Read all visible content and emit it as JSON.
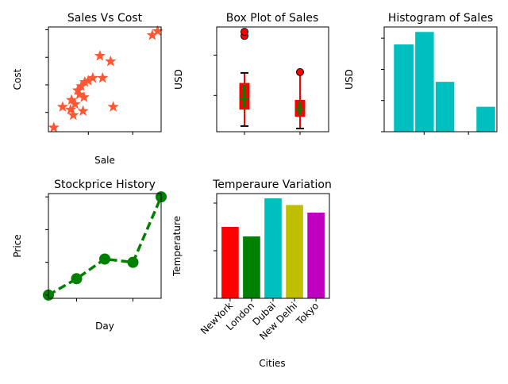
{
  "chart_data": [
    {
      "type": "scatter",
      "title": "Sales Vs Cost",
      "xlabel": "Sale",
      "ylabel": "Cost",
      "xlim": [
        5,
        132
      ],
      "ylim": [
        6,
        82
      ],
      "xticks": [
        50,
        100
      ],
      "yticks": [
        20,
        40,
        60,
        80
      ],
      "marker": "star",
      "color": "#ff5733",
      "points": [
        {
          "x": 11,
          "y": 9
        },
        {
          "x": 21,
          "y": 24
        },
        {
          "x": 30,
          "y": 22
        },
        {
          "x": 31,
          "y": 29
        },
        {
          "x": 33,
          "y": 18
        },
        {
          "x": 35,
          "y": 26
        },
        {
          "x": 38,
          "y": 36
        },
        {
          "x": 40,
          "y": 33
        },
        {
          "x": 42,
          "y": 39
        },
        {
          "x": 44,
          "y": 21
        },
        {
          "x": 45,
          "y": 31
        },
        {
          "x": 46,
          "y": 42
        },
        {
          "x": 50,
          "y": 43
        },
        {
          "x": 55,
          "y": 45
        },
        {
          "x": 63,
          "y": 61
        },
        {
          "x": 66,
          "y": 45
        },
        {
          "x": 75,
          "y": 57
        },
        {
          "x": 78,
          "y": 24
        },
        {
          "x": 122,
          "y": 76
        },
        {
          "x": 128,
          "y": 79
        }
      ]
    },
    {
      "type": "box",
      "title": "Box Plot of Sales",
      "xlabel": "",
      "ylabel": "USD",
      "xticks": [
        "1",
        "2"
      ],
      "ylim": [
        5,
        135
      ],
      "yticks": [
        50,
        100
      ],
      "box_color": "#ff0000",
      "median_color": "#008000",
      "whisker_color": "#ff0000",
      "cap_color": "#000000",
      "boxes": [
        {
          "whislo": 12,
          "q1": 33,
          "median": 46,
          "q3": 65,
          "whishi": 78,
          "fliers": [
            124,
            129
          ]
        },
        {
          "whislo": 9,
          "q1": 24,
          "median": 33,
          "q3": 44,
          "whishi": 79,
          "fliers": [
            79
          ]
        }
      ]
    },
    {
      "type": "bar",
      "title": "Histogram of Sales",
      "xlabel": "",
      "ylabel": "USD",
      "xlim": [
        5,
        132
      ],
      "ylim": [
        0,
        8.4
      ],
      "xticks": [
        50,
        100
      ],
      "yticks": [
        "0.0",
        "2.5",
        "5.0",
        "7.5"
      ],
      "color": "#00bfbf",
      "bins": [
        {
          "x0": 16,
          "x1": 38,
          "value": 7
        },
        {
          "x0": 40,
          "x1": 61,
          "value": 8
        },
        {
          "x0": 63,
          "x1": 84,
          "value": 4
        },
        {
          "x0": 86,
          "x1": 107,
          "value": 0
        },
        {
          "x0": 109,
          "x1": 130,
          "value": 2
        }
      ]
    },
    {
      "type": "line",
      "title": "Stockprice History",
      "xlabel": "Day",
      "ylabel": "Price",
      "xlim": [
        1,
        5
      ],
      "ylim": [
        8.9,
        12.1
      ],
      "xticks": [
        2,
        4
      ],
      "yticks": [
        9,
        10,
        11,
        12
      ],
      "color": "#008000",
      "linestyle": "dashed",
      "marker": "circle",
      "x": [
        1,
        2,
        3,
        4,
        5
      ],
      "values": [
        9.0,
        9.5,
        10.1,
        10.0,
        12.0
      ]
    },
    {
      "type": "bar",
      "title": "Temperaure Variation",
      "xlabel": "Cities",
      "ylabel": "Temperature",
      "ylim": [
        0,
        110
      ],
      "yticks": [
        0,
        50,
        100
      ],
      "categories": [
        "NewYork",
        "London",
        "Dubai",
        "New Delhi",
        "Tokyo"
      ],
      "values": [
        75,
        65,
        105,
        98,
        90
      ],
      "colors": [
        "#ff0000",
        "#008000",
        "#00bfbf",
        "#bfbf00",
        "#bf00bf"
      ]
    }
  ]
}
